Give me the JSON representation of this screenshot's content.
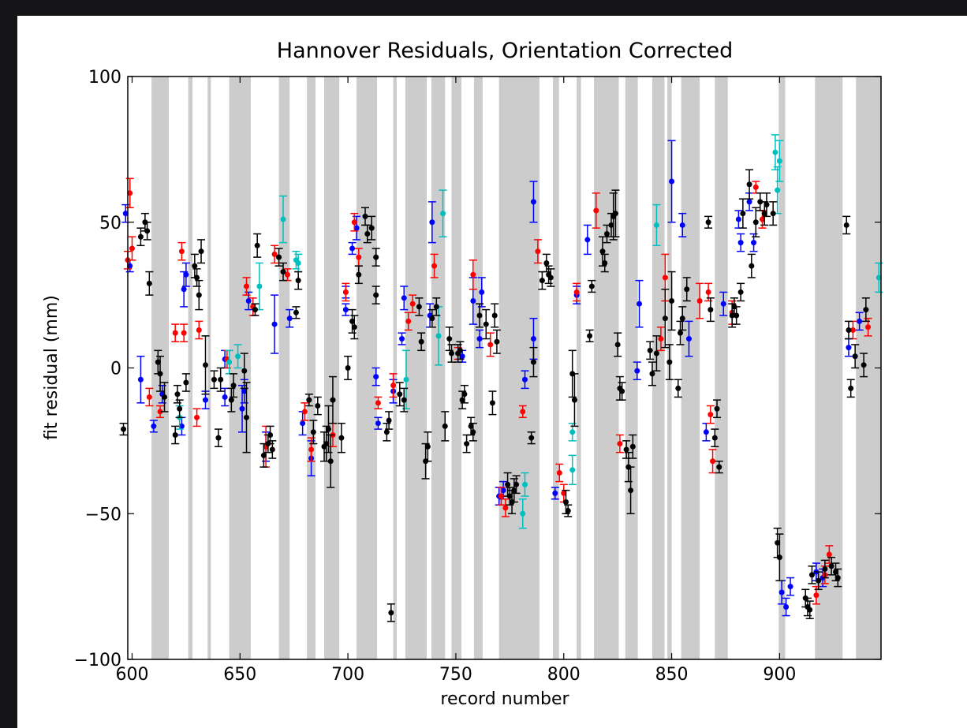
{
  "chart_data": {
    "type": "errorbar-scatter",
    "title": "Hannover Residuals, Orientation Corrected",
    "xlabel": "record number",
    "ylabel": "fit residual (mm)",
    "xlim": [
      598,
      947
    ],
    "ylim": [
      -100,
      100
    ],
    "xticks": [
      600,
      650,
      700,
      750,
      800,
      850,
      900
    ],
    "yticks": [
      {
        "value": -100,
        "label": "−100"
      },
      {
        "value": -50,
        "label": "−50"
      },
      0,
      50,
      100
    ],
    "span_color": "#cccccc",
    "spans": [
      [
        609,
        617
      ],
      [
        626,
        628
      ],
      [
        635,
        636.5
      ],
      [
        645,
        655
      ],
      [
        668,
        673
      ],
      [
        681,
        685
      ],
      [
        689,
        696
      ],
      [
        704,
        713.5
      ],
      [
        721,
        722.6
      ],
      [
        726.6,
        736.5
      ],
      [
        738.7,
        745
      ],
      [
        748,
        752.6
      ],
      [
        758.4,
        762.4
      ],
      [
        770,
        788.7
      ],
      [
        795,
        797.8
      ],
      [
        806,
        808
      ],
      [
        814,
        825.5
      ],
      [
        828.5,
        834.3
      ],
      [
        841,
        846.7
      ],
      [
        848,
        850
      ],
      [
        854.4,
        863
      ],
      [
        870,
        876
      ],
      [
        899.6,
        902.6
      ],
      [
        916.4,
        929.2
      ],
      [
        935.4,
        947
      ]
    ],
    "series": [
      {
        "color": "#0000ff",
        "x": [
          597,
          599,
          604,
          610,
          614,
          623,
          624,
          625,
          634,
          643,
          643,
          651,
          652,
          654,
          662,
          666,
          673,
          679,
          683,
          699,
          699,
          702,
          704,
          713,
          714,
          721,
          725,
          726,
          738,
          739,
          753,
          758,
          761,
          762,
          770,
          772,
          782,
          786,
          786,
          796,
          806,
          811,
          834,
          835,
          850,
          855,
          858,
          866,
          874,
          881,
          882,
          886,
          888,
          901,
          903,
          905,
          917,
          920,
          932,
          937
        ],
        "values": [
          53,
          35,
          -4,
          -20,
          -9,
          -20,
          27,
          32,
          -11,
          -10,
          3,
          -14,
          -8,
          23,
          -27,
          15,
          17,
          -19,
          -31,
          20,
          26,
          41,
          48,
          -3,
          -19,
          -8,
          10,
          24,
          18,
          50,
          4,
          23,
          10,
          26,
          -44,
          -42,
          -4,
          10,
          57,
          -43,
          25,
          44,
          -1,
          22,
          64,
          49,
          10,
          -22,
          22,
          51,
          43,
          57,
          43,
          -77,
          -82,
          -75,
          -70,
          -72,
          7,
          16
        ],
        "errors": [
          3,
          2,
          8,
          2,
          3,
          3,
          6,
          4,
          3,
          3,
          3,
          8,
          4,
          3,
          5,
          10,
          3,
          4,
          6,
          2,
          2,
          2,
          4,
          3,
          2,
          4,
          2,
          4,
          4,
          7,
          2,
          8,
          3,
          5,
          3,
          3,
          3,
          7,
          7,
          2,
          3,
          5,
          3,
          8,
          14,
          4,
          6,
          3,
          4,
          3,
          3,
          3,
          3,
          4,
          3,
          3,
          3,
          3,
          3,
          3
        ]
      },
      {
        "color": "#ff0000",
        "x": [
          598,
          599,
          600,
          608,
          613,
          620,
          623,
          624,
          630,
          631,
          644,
          653,
          656,
          662,
          666,
          672,
          680,
          683,
          693,
          699,
          703,
          705,
          714,
          721,
          728,
          730,
          740,
          751,
          758,
          766,
          771,
          773,
          781,
          788,
          798,
          800,
          806,
          815,
          826,
          845,
          847,
          863,
          867,
          868,
          869,
          878,
          889,
          892,
          917,
          921,
          923,
          934,
          941
        ],
        "values": [
          37,
          60,
          41,
          -10,
          -15,
          12,
          40,
          12,
          -17,
          13,
          3,
          28,
          21,
          -27,
          39,
          32,
          -15,
          -28,
          -23,
          26,
          50,
          38,
          -12,
          -6,
          16,
          22,
          35,
          5,
          32,
          8,
          -44,
          -48,
          -15,
          40,
          -36,
          -43,
          26,
          54,
          -26,
          10,
          31,
          23,
          26,
          -16,
          -32,
          19,
          62,
          51,
          -78,
          -71,
          -64,
          13,
          14
        ],
        "errors": [
          3,
          5,
          4,
          3,
          2,
          3,
          3,
          3,
          3,
          3,
          3,
          3,
          3,
          7,
          3,
          2,
          3,
          4,
          4,
          3,
          3,
          3,
          2,
          4,
          3,
          3,
          4,
          2,
          5,
          4,
          3,
          3,
          2,
          4,
          3,
          3,
          3,
          6,
          3,
          4,
          8,
          6,
          3,
          3,
          4,
          4,
          2,
          3,
          3,
          3,
          3,
          3,
          3
        ]
      },
      {
        "color": "#00bfbf",
        "x": [
          622,
          645,
          649,
          659,
          670,
          676,
          677,
          727,
          742,
          744,
          781,
          782,
          804,
          804,
          843,
          898,
          899,
          900,
          946
        ],
        "values": [
          -17,
          2,
          4,
          28,
          51,
          37,
          36,
          -4,
          11,
          53,
          -50,
          -40,
          -35,
          -22,
          49,
          74,
          61,
          71,
          31
        ],
        "errors": [
          4,
          4,
          4,
          8,
          8,
          3,
          3,
          10,
          10,
          8,
          5,
          4,
          5,
          3,
          7,
          6,
          8,
          7,
          5
        ]
      },
      {
        "color": "#000000",
        "x": [
          596,
          604,
          606,
          607,
          608,
          612,
          613,
          615,
          620,
          621,
          622,
          625,
          629,
          630,
          631,
          632,
          634,
          638,
          640,
          641,
          646,
          647,
          652,
          653,
          657,
          658,
          661,
          663,
          664,
          665,
          668,
          670,
          676,
          677,
          682,
          684,
          686,
          689,
          690,
          691,
          692,
          693,
          697,
          700,
          702,
          703,
          705,
          708,
          709,
          711,
          713,
          713,
          718,
          719,
          720,
          724,
          726,
          733,
          734,
          736,
          737,
          739,
          741,
          745,
          747,
          748,
          751,
          752,
          753,
          754,
          755,
          757,
          758,
          761,
          764,
          767,
          768,
          769,
          774,
          775,
          776,
          777,
          778,
          785,
          786,
          790,
          792,
          793,
          794,
          801,
          802,
          804,
          805,
          812,
          813,
          818,
          819,
          820,
          822,
          823,
          824,
          825,
          826,
          827,
          829,
          830,
          831,
          832,
          840,
          841,
          843,
          847,
          849,
          850,
          853,
          854,
          855,
          857,
          867,
          868,
          870,
          871,
          872,
          878,
          879,
          880,
          882,
          883,
          886,
          887,
          889,
          891,
          893,
          894,
          897,
          899,
          900,
          912,
          913,
          914,
          915,
          918,
          921,
          924,
          926,
          927,
          931,
          932,
          933,
          935,
          939,
          940
        ],
        "values": [
          -21,
          45,
          50,
          47,
          29,
          2,
          -2,
          -10,
          -23,
          -9,
          -14,
          -5,
          35,
          31,
          25,
          40,
          1,
          -4,
          -24,
          -4,
          -11,
          -6,
          -1,
          -17,
          20,
          42,
          -30,
          -26,
          -23,
          -28,
          38,
          33,
          19,
          30,
          -11,
          -22,
          -13,
          -27,
          -26,
          -21,
          -32,
          -11,
          -24,
          0,
          16,
          14,
          32,
          52,
          46,
          48,
          38,
          25,
          -22,
          -18,
          -84,
          -9,
          -11,
          21,
          9,
          -32,
          -27,
          17,
          21,
          -20,
          10,
          5,
          5,
          6,
          -11,
          -9,
          -26,
          -20,
          -22,
          18,
          15,
          -12,
          18,
          9,
          -40,
          -44,
          -46,
          -42,
          -40,
          -24,
          2,
          30,
          36,
          32,
          31,
          -46,
          -49,
          -2,
          -11,
          11,
          28,
          40,
          36,
          46,
          49,
          52,
          53,
          8,
          -7,
          -8,
          -28,
          -34,
          -42,
          -27,
          6,
          -2,
          5,
          17,
          2,
          23,
          -7,
          12,
          17,
          27,
          50,
          20,
          -24,
          -14,
          -34,
          18,
          21,
          18,
          26,
          53,
          63,
          35,
          50,
          57,
          53,
          56,
          53,
          -60,
          -65,
          -79,
          -82,
          -83,
          -71,
          -73,
          -69,
          -68,
          -70,
          -72,
          49,
          13,
          -7,
          4,
          1,
          20
        ],
        "errors": [
          2,
          3,
          3,
          3,
          4,
          4,
          6,
          5,
          3,
          3,
          3,
          3,
          4,
          3,
          5,
          4,
          10,
          3,
          3,
          4,
          4,
          4,
          6,
          12,
          2,
          4,
          4,
          3,
          3,
          3,
          3,
          3,
          2,
          3,
          2,
          4,
          3,
          5,
          6,
          8,
          9,
          8,
          5,
          4,
          4,
          4,
          3,
          3,
          3,
          4,
          3,
          3,
          3,
          3,
          3,
          4,
          4,
          3,
          3,
          6,
          5,
          3,
          3,
          5,
          4,
          3,
          3,
          3,
          3,
          3,
          3,
          3,
          3,
          4,
          5,
          4,
          4,
          4,
          4,
          3,
          4,
          4,
          3,
          2,
          5,
          3,
          3,
          3,
          3,
          4,
          2,
          8,
          9,
          2,
          2,
          5,
          3,
          3,
          4,
          8,
          8,
          4,
          4,
          3,
          3,
          5,
          8,
          4,
          3,
          4,
          6,
          10,
          6,
          10,
          3,
          4,
          4,
          4,
          2,
          4,
          3,
          3,
          2,
          4,
          3,
          3,
          3,
          5,
          5,
          4,
          5,
          3,
          4,
          4,
          4,
          5,
          8,
          3,
          3,
          3,
          3,
          3,
          3,
          3,
          3,
          3,
          3,
          3,
          3,
          4,
          4,
          4
        ]
      }
    ]
  }
}
